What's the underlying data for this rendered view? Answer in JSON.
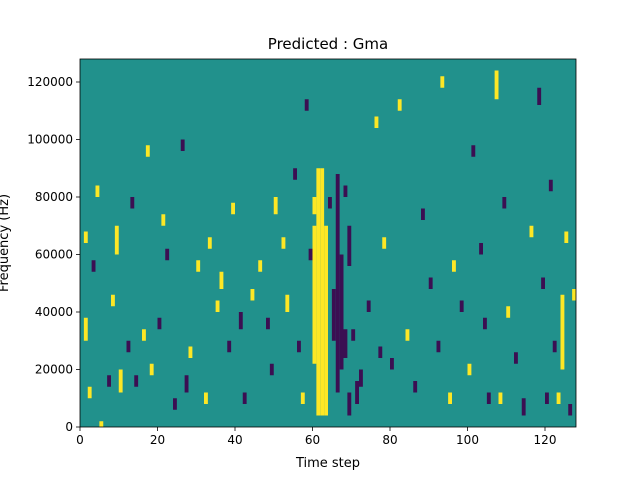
{
  "chart_data": {
    "type": "heatmap",
    "title": "Predicted : Gma",
    "xlabel": "Time step",
    "ylabel": "Frequency (Hz)",
    "xlim": [
      0,
      128
    ],
    "ylim": [
      0,
      128000
    ],
    "xticks": [
      0,
      20,
      40,
      60,
      80,
      100,
      120
    ],
    "yticks": [
      0,
      20000,
      40000,
      60000,
      80000,
      100000,
      120000
    ],
    "xtick_labels": [
      "0",
      "20",
      "40",
      "60",
      "80",
      "100",
      "120"
    ],
    "ytick_labels": [
      "0",
      "20000",
      "40000",
      "60000",
      "80000",
      "100000",
      "120000"
    ],
    "value_range": [
      -1,
      1
    ],
    "colormap": {
      "-1": "#3b0f52",
      "0": "#21918c",
      "1": "#fde725"
    },
    "background_value": 0,
    "bin_width": 1,
    "bin_height": 2000,
    "cells": [
      {
        "t": 61,
        "f_start": 4000,
        "f_end": 90000,
        "v": 1
      },
      {
        "t": 62,
        "f_start": 4000,
        "f_end": 90000,
        "v": 1
      },
      {
        "t": 63,
        "f_start": 4000,
        "f_end": 70000,
        "v": 1
      },
      {
        "t": 60,
        "f_start": 22000,
        "f_end": 70000,
        "v": 1
      },
      {
        "t": 60,
        "f_start": 74000,
        "f_end": 80000,
        "v": 1
      },
      {
        "t": 66,
        "f_start": 12000,
        "f_end": 88000,
        "v": -1
      },
      {
        "t": 67,
        "f_start": 20000,
        "f_end": 60000,
        "v": -1
      },
      {
        "t": 65,
        "f_start": 30000,
        "f_end": 48000,
        "v": -1
      },
      {
        "t": 68,
        "f_start": 24000,
        "f_end": 34000,
        "v": -1
      },
      {
        "t": 69,
        "f_start": 56000,
        "f_end": 70000,
        "v": -1
      },
      {
        "t": 64,
        "f_start": 76000,
        "f_end": 80000,
        "v": -1
      },
      {
        "t": 68,
        "f_start": 80000,
        "f_end": 84000,
        "v": -1
      },
      {
        "t": 70,
        "f_start": 30000,
        "f_end": 34000,
        "v": -1
      },
      {
        "t": 71,
        "f_start": 8000,
        "f_end": 16000,
        "v": -1
      },
      {
        "t": 69,
        "f_start": 4000,
        "f_end": 12000,
        "v": -1
      },
      {
        "t": 72,
        "f_start": 14000,
        "f_end": 20000,
        "v": -1
      },
      {
        "t": 2,
        "f_start": 10000,
        "f_end": 14000,
        "v": 1
      },
      {
        "t": 1,
        "f_start": 30000,
        "f_end": 38000,
        "v": 1
      },
      {
        "t": 1,
        "f_start": 64000,
        "f_end": 68000,
        "v": 1
      },
      {
        "t": 3,
        "f_start": 54000,
        "f_end": 58000,
        "v": -1
      },
      {
        "t": 4,
        "f_start": 80000,
        "f_end": 84000,
        "v": 1
      },
      {
        "t": 5,
        "f_start": 0,
        "f_end": 2000,
        "v": 1
      },
      {
        "t": 7,
        "f_start": 14000,
        "f_end": 18000,
        "v": -1
      },
      {
        "t": 8,
        "f_start": 42000,
        "f_end": 46000,
        "v": 1
      },
      {
        "t": 9,
        "f_start": 60000,
        "f_end": 70000,
        "v": 1
      },
      {
        "t": 10,
        "f_start": 12000,
        "f_end": 20000,
        "v": 1
      },
      {
        "t": 12,
        "f_start": 26000,
        "f_end": 30000,
        "v": -1
      },
      {
        "t": 13,
        "f_start": 76000,
        "f_end": 80000,
        "v": -1
      },
      {
        "t": 14,
        "f_start": 14000,
        "f_end": 18000,
        "v": -1
      },
      {
        "t": 16,
        "f_start": 30000,
        "f_end": 34000,
        "v": 1
      },
      {
        "t": 17,
        "f_start": 94000,
        "f_end": 98000,
        "v": 1
      },
      {
        "t": 18,
        "f_start": 18000,
        "f_end": 22000,
        "v": 1
      },
      {
        "t": 20,
        "f_start": 34000,
        "f_end": 38000,
        "v": -1
      },
      {
        "t": 21,
        "f_start": 70000,
        "f_end": 74000,
        "v": 1
      },
      {
        "t": 22,
        "f_start": 58000,
        "f_end": 62000,
        "v": -1
      },
      {
        "t": 24,
        "f_start": 6000,
        "f_end": 10000,
        "v": -1
      },
      {
        "t": 26,
        "f_start": 96000,
        "f_end": 100000,
        "v": -1
      },
      {
        "t": 27,
        "f_start": 12000,
        "f_end": 18000,
        "v": -1
      },
      {
        "t": 28,
        "f_start": 24000,
        "f_end": 28000,
        "v": 1
      },
      {
        "t": 30,
        "f_start": 54000,
        "f_end": 58000,
        "v": 1
      },
      {
        "t": 32,
        "f_start": 8000,
        "f_end": 12000,
        "v": 1
      },
      {
        "t": 33,
        "f_start": 62000,
        "f_end": 66000,
        "v": 1
      },
      {
        "t": 35,
        "f_start": 40000,
        "f_end": 44000,
        "v": 1
      },
      {
        "t": 36,
        "f_start": 48000,
        "f_end": 54000,
        "v": 1
      },
      {
        "t": 38,
        "f_start": 26000,
        "f_end": 30000,
        "v": -1
      },
      {
        "t": 39,
        "f_start": 74000,
        "f_end": 78000,
        "v": 1
      },
      {
        "t": 41,
        "f_start": 34000,
        "f_end": 40000,
        "v": -1
      },
      {
        "t": 42,
        "f_start": 8000,
        "f_end": 12000,
        "v": -1
      },
      {
        "t": 44,
        "f_start": 44000,
        "f_end": 48000,
        "v": 1
      },
      {
        "t": 46,
        "f_start": 54000,
        "f_end": 58000,
        "v": 1
      },
      {
        "t": 48,
        "f_start": 34000,
        "f_end": 38000,
        "v": -1
      },
      {
        "t": 49,
        "f_start": 18000,
        "f_end": 22000,
        "v": -1
      },
      {
        "t": 50,
        "f_start": 74000,
        "f_end": 80000,
        "v": 1
      },
      {
        "t": 52,
        "f_start": 62000,
        "f_end": 66000,
        "v": 1
      },
      {
        "t": 53,
        "f_start": 40000,
        "f_end": 46000,
        "v": 1
      },
      {
        "t": 55,
        "f_start": 86000,
        "f_end": 90000,
        "v": -1
      },
      {
        "t": 56,
        "f_start": 26000,
        "f_end": 30000,
        "v": -1
      },
      {
        "t": 57,
        "f_start": 8000,
        "f_end": 12000,
        "v": 1
      },
      {
        "t": 58,
        "f_start": 110000,
        "f_end": 114000,
        "v": -1
      },
      {
        "t": 59,
        "f_start": 58000,
        "f_end": 62000,
        "v": -1
      },
      {
        "t": 74,
        "f_start": 40000,
        "f_end": 44000,
        "v": -1
      },
      {
        "t": 76,
        "f_start": 104000,
        "f_end": 108000,
        "v": 1
      },
      {
        "t": 77,
        "f_start": 24000,
        "f_end": 28000,
        "v": -1
      },
      {
        "t": 78,
        "f_start": 62000,
        "f_end": 66000,
        "v": 1
      },
      {
        "t": 80,
        "f_start": 20000,
        "f_end": 24000,
        "v": -1
      },
      {
        "t": 82,
        "f_start": 110000,
        "f_end": 114000,
        "v": 1
      },
      {
        "t": 84,
        "f_start": 30000,
        "f_end": 34000,
        "v": 1
      },
      {
        "t": 86,
        "f_start": 12000,
        "f_end": 16000,
        "v": -1
      },
      {
        "t": 88,
        "f_start": 72000,
        "f_end": 76000,
        "v": -1
      },
      {
        "t": 90,
        "f_start": 48000,
        "f_end": 52000,
        "v": -1
      },
      {
        "t": 92,
        "f_start": 26000,
        "f_end": 30000,
        "v": -1
      },
      {
        "t": 93,
        "f_start": 118000,
        "f_end": 122000,
        "v": 1
      },
      {
        "t": 95,
        "f_start": 8000,
        "f_end": 12000,
        "v": 1
      },
      {
        "t": 96,
        "f_start": 54000,
        "f_end": 58000,
        "v": 1
      },
      {
        "t": 98,
        "f_start": 40000,
        "f_end": 44000,
        "v": -1
      },
      {
        "t": 100,
        "f_start": 18000,
        "f_end": 22000,
        "v": 1
      },
      {
        "t": 101,
        "f_start": 94000,
        "f_end": 98000,
        "v": -1
      },
      {
        "t": 103,
        "f_start": 60000,
        "f_end": 64000,
        "v": -1
      },
      {
        "t": 104,
        "f_start": 34000,
        "f_end": 38000,
        "v": -1
      },
      {
        "t": 105,
        "f_start": 8000,
        "f_end": 12000,
        "v": -1
      },
      {
        "t": 107,
        "f_start": 114000,
        "f_end": 124000,
        "v": 1
      },
      {
        "t": 108,
        "f_start": 8000,
        "f_end": 12000,
        "v": 1
      },
      {
        "t": 109,
        "f_start": 76000,
        "f_end": 80000,
        "v": -1
      },
      {
        "t": 110,
        "f_start": 38000,
        "f_end": 42000,
        "v": 1
      },
      {
        "t": 112,
        "f_start": 22000,
        "f_end": 26000,
        "v": -1
      },
      {
        "t": 114,
        "f_start": 4000,
        "f_end": 10000,
        "v": -1
      },
      {
        "t": 116,
        "f_start": 66000,
        "f_end": 70000,
        "v": 1
      },
      {
        "t": 118,
        "f_start": 112000,
        "f_end": 118000,
        "v": -1
      },
      {
        "t": 119,
        "f_start": 48000,
        "f_end": 52000,
        "v": -1
      },
      {
        "t": 120,
        "f_start": 8000,
        "f_end": 12000,
        "v": -1
      },
      {
        "t": 121,
        "f_start": 82000,
        "f_end": 86000,
        "v": -1
      },
      {
        "t": 122,
        "f_start": 26000,
        "f_end": 30000,
        "v": -1
      },
      {
        "t": 123,
        "f_start": 8000,
        "f_end": 12000,
        "v": 1
      },
      {
        "t": 124,
        "f_start": 20000,
        "f_end": 46000,
        "v": 1
      },
      {
        "t": 125,
        "f_start": 64000,
        "f_end": 68000,
        "v": 1
      },
      {
        "t": 126,
        "f_start": 4000,
        "f_end": 8000,
        "v": -1
      },
      {
        "t": 127,
        "f_start": 44000,
        "f_end": 48000,
        "v": 1
      }
    ]
  }
}
